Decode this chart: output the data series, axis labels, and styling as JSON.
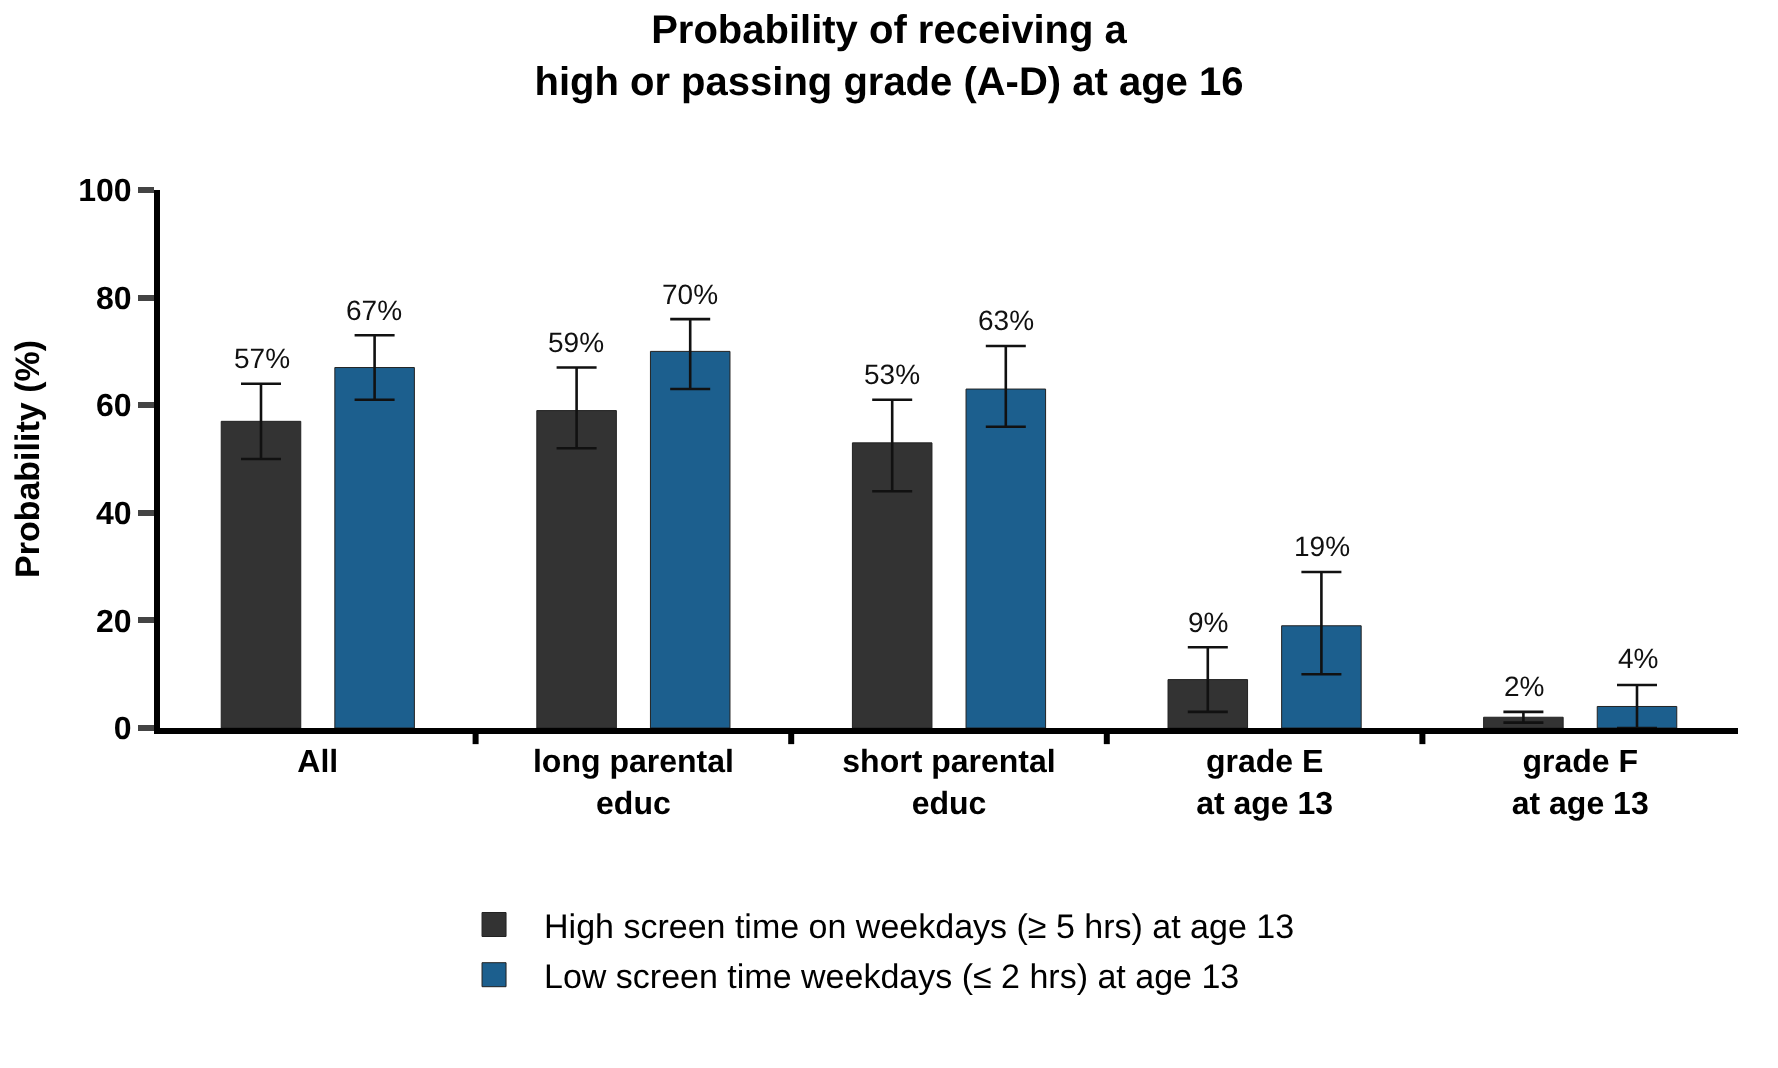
{
  "chart_data": {
    "type": "bar",
    "title": "Probability of receiving a\nhigh or passing grade (A-D) at age 16",
    "ylabel": "Probability (%)",
    "categories": [
      "All",
      "long parental\neduc",
      "short parental\neduc",
      "grade E\nat age 13",
      "grade F\nat age 13"
    ],
    "series": [
      {
        "name": "High screen time on weekdays (≥ 5 hrs) at age 13",
        "color": "#333333",
        "values": [
          57,
          59,
          53,
          9,
          2
        ],
        "value_labels": [
          "57%",
          "59%",
          "53%",
          "9%",
          "2%"
        ],
        "errors": [
          [
            50,
            64
          ],
          [
            52,
            67
          ],
          [
            44,
            61
          ],
          [
            3,
            15
          ],
          [
            1,
            3
          ]
        ]
      },
      {
        "name": "Low screen time weekdays (≤ 2 hrs) at age 13",
        "color": "#1c5f8e",
        "values": [
          67,
          70,
          63,
          19,
          4
        ],
        "value_labels": [
          "67%",
          "70%",
          "63%",
          "19%",
          "4%"
        ],
        "errors": [
          [
            61,
            73
          ],
          [
            63,
            76
          ],
          [
            56,
            71
          ],
          [
            10,
            29
          ],
          [
            0,
            8
          ]
        ]
      }
    ],
    "ylim": [
      0,
      100
    ],
    "yticks": [
      0,
      20,
      40,
      60,
      80,
      100
    ],
    "legend": "bottom"
  }
}
